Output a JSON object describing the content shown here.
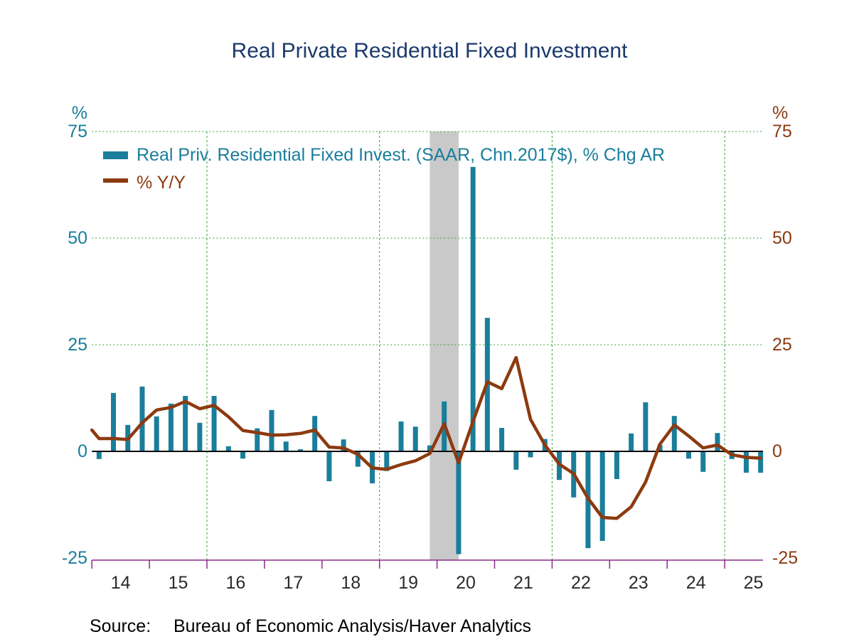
{
  "title": "Real Private Residential Fixed Investment",
  "legend": {
    "items": [
      {
        "label": "Real Priv. Residential Fixed Invest. (SAAR, Chn.2017$), % Chg AR"
      },
      {
        "label": "% Y/Y"
      }
    ]
  },
  "axes": {
    "left_unit": "%",
    "right_unit": "%",
    "yticks": [
      75,
      50,
      25,
      0,
      -25
    ],
    "year_labels": [
      "14",
      "15",
      "16",
      "17",
      "18",
      "19",
      "20",
      "21",
      "22",
      "23",
      "24",
      "25"
    ]
  },
  "source": {
    "label": "Source:",
    "text": "Bureau of Economic Analysis/Haver Analytics"
  },
  "colors": {
    "bar": "#1a7e9b",
    "line": "#8c3a10",
    "title": "#1b3a6b",
    "left_axis_text": "#1a7e9b",
    "right_axis_text": "#8c3a10",
    "x_axis_text": "#2b2b2b",
    "axis_line": "#8a2a8a",
    "gridline": "#3aa23a",
    "recession_band": "#c9c9c9",
    "zero_line": "#000000",
    "source_text": "#000000"
  },
  "chart_data": {
    "type": "bar",
    "title": "Real Private Residential Fixed Investment",
    "xlabel": "",
    "ylabel": "%",
    "ylim": [
      -25,
      75
    ],
    "yticks": [
      75,
      50,
      25,
      0,
      -25
    ],
    "grid": "dotted-green",
    "grid_y": [
      75,
      50,
      25
    ],
    "grid_x_years": [
      2016,
      2019,
      2022,
      2025
    ],
    "legend_position": "top-left",
    "recession_band": {
      "from": "2019 Q4",
      "to": "2020 Q2"
    },
    "x_start": "2014 Q1",
    "x_end": "2025 Q3",
    "categories": [
      "2014 Q1",
      "2014 Q2",
      "2014 Q3",
      "2014 Q4",
      "2015 Q1",
      "2015 Q2",
      "2015 Q3",
      "2015 Q4",
      "2016 Q1",
      "2016 Q2",
      "2016 Q3",
      "2016 Q4",
      "2017 Q1",
      "2017 Q2",
      "2017 Q3",
      "2017 Q4",
      "2018 Q1",
      "2018 Q2",
      "2018 Q3",
      "2018 Q4",
      "2019 Q1",
      "2019 Q2",
      "2019 Q3",
      "2019 Q4",
      "2020 Q1",
      "2020 Q2",
      "2020 Q3",
      "2020 Q4",
      "2021 Q1",
      "2021 Q2",
      "2021 Q3",
      "2021 Q4",
      "2022 Q1",
      "2022 Q2",
      "2022 Q3",
      "2022 Q4",
      "2023 Q1",
      "2023 Q2",
      "2023 Q3",
      "2023 Q4",
      "2024 Q1",
      "2024 Q2",
      "2024 Q3",
      "2024 Q4",
      "2025 Q1",
      "2025 Q2",
      "2025 Q3"
    ],
    "series": [
      {
        "name": "Real Priv. Residential Fixed Invest. (SAAR, Chn.2017$), % Chg AR",
        "type": "bar",
        "values": [
          -1.8,
          13.7,
          6.2,
          15.2,
          8.2,
          11.2,
          13.0,
          6.7,
          13.0,
          1.2,
          -1.7,
          5.4,
          9.7,
          2.3,
          0.5,
          8.3,
          -7.0,
          2.8,
          -3.6,
          -7.5,
          -4.6,
          7.0,
          5.8,
          1.4,
          11.7,
          -24.1,
          66.7,
          31.3,
          5.5,
          -4.3,
          -1.4,
          2.9,
          -6.7,
          -10.8,
          -22.7,
          -21.0,
          -6.5,
          4.2,
          11.5,
          1.5,
          8.3,
          -1.7,
          -4.8,
          4.3,
          -1.8,
          -5.0,
          -5.0
        ]
      },
      {
        "name": "% Y/Y",
        "type": "line",
        "left_edge_value": 5.0,
        "values": [
          3.0,
          3.0,
          2.8,
          6.7,
          9.7,
          10.3,
          11.7,
          10.0,
          10.8,
          8.1,
          4.9,
          4.4,
          3.8,
          3.9,
          4.2,
          5.0,
          1.0,
          0.8,
          -0.7,
          -3.9,
          -4.2,
          -3.1,
          -2.2,
          -0.5,
          6.5,
          -2.7,
          7.0,
          16.3,
          14.7,
          22.0,
          7.5,
          1.5,
          -3.0,
          -5.2,
          -11.0,
          -15.5,
          -15.7,
          -13.0,
          -7.2,
          1.7,
          6.2,
          3.6,
          0.8,
          1.5,
          -0.8,
          -1.4,
          -1.6
        ]
      }
    ]
  }
}
